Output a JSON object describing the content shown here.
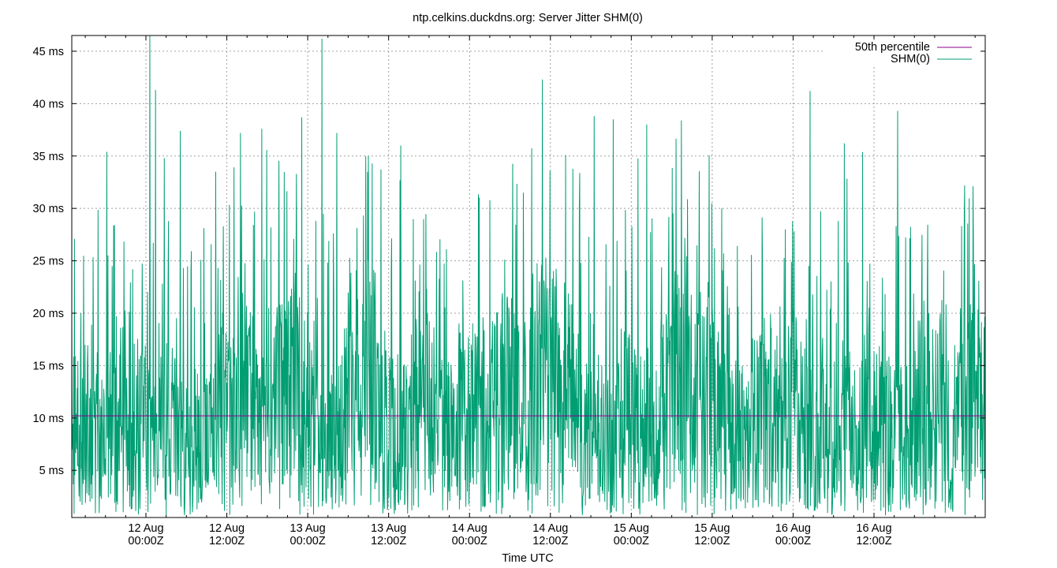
{
  "chart_data": {
    "type": "line",
    "title": "ntp.celkins.duckdns.org: Server Jitter SHM(0)",
    "xlabel": "Time UTC",
    "ylabel": "",
    "x_range_hours": [
      -11.0,
      124.5
    ],
    "ylim": [
      0.5,
      46.5
    ],
    "y_ticks": [
      {
        "value": 5,
        "label": "5 ms"
      },
      {
        "value": 10,
        "label": "10 ms"
      },
      {
        "value": 15,
        "label": "15 ms"
      },
      {
        "value": 20,
        "label": "20 ms"
      },
      {
        "value": 25,
        "label": "25 ms"
      },
      {
        "value": 30,
        "label": "30 ms"
      },
      {
        "value": 35,
        "label": "35 ms"
      },
      {
        "value": 40,
        "label": "40 ms"
      },
      {
        "value": 45,
        "label": "45 ms"
      }
    ],
    "x_ticks": [
      {
        "hour": 0,
        "line1": "12 Aug",
        "line2": "00:00Z"
      },
      {
        "hour": 12,
        "line1": "12 Aug",
        "line2": "12:00Z"
      },
      {
        "hour": 24,
        "line1": "13 Aug",
        "line2": "00:00Z"
      },
      {
        "hour": 36,
        "line1": "13 Aug",
        "line2": "12:00Z"
      },
      {
        "hour": 48,
        "line1": "14 Aug",
        "line2": "00:00Z"
      },
      {
        "hour": 60,
        "line1": "14 Aug",
        "line2": "12:00Z"
      },
      {
        "hour": 72,
        "line1": "15 Aug",
        "line2": "00:00Z"
      },
      {
        "hour": 84,
        "line1": "15 Aug",
        "line2": "12:00Z"
      },
      {
        "hour": 96,
        "line1": "16 Aug",
        "line2": "00:00Z"
      },
      {
        "hour": 108,
        "line1": "16 Aug",
        "line2": "12:00Z"
      }
    ],
    "grid": true,
    "legend_position": "top-right",
    "series": [
      {
        "name": "50th percentile",
        "color": "#8b008b",
        "kind": "constant",
        "value": 10.2
      },
      {
        "name": "SHM(0)",
        "color": "#009e73",
        "kind": "noisy-band",
        "median": 10.2,
        "range": [
          0.7,
          46.5
        ],
        "spikes": [
          {
            "hour": 0.6,
            "value": 46.5
          },
          {
            "hour": 1.4,
            "value": 41.3
          },
          {
            "hour": 26.1,
            "value": 46.2
          },
          {
            "hour": 23.1,
            "value": 38.7
          },
          {
            "hour": 58.8,
            "value": 42.3
          },
          {
            "hour": 98.5,
            "value": 41.2
          },
          {
            "hour": 111.5,
            "value": 39.3
          },
          {
            "hour": 79.4,
            "value": 38.4
          },
          {
            "hour": -5.8,
            "value": 35.4
          },
          {
            "hour": 2.7,
            "value": 34.8
          },
          {
            "hour": 5.1,
            "value": 37.4
          },
          {
            "hour": 14.0,
            "value": 37.2
          },
          {
            "hour": 17.2,
            "value": 37.6
          },
          {
            "hour": 28.3,
            "value": 37.2
          },
          {
            "hour": 37.8,
            "value": 36.0
          },
          {
            "hour": 66.5,
            "value": 38.8
          },
          {
            "hour": 69.3,
            "value": 38.5
          },
          {
            "hour": 74.3,
            "value": 38.0
          },
          {
            "hour": 103.6,
            "value": 36.2
          }
        ],
        "description_points": 2400
      }
    ]
  }
}
